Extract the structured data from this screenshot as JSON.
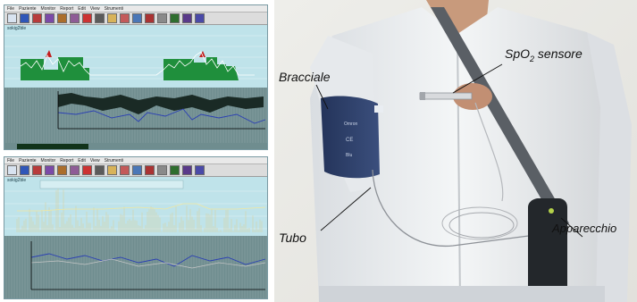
{
  "title_fragment": "p",
  "title_sub": "2",
  "software": {
    "menu_items": [
      "File",
      "Paziente",
      "Monitor",
      "Report",
      "Edit",
      "View",
      "Strumenti"
    ],
    "toolbar_colors": [
      "#d8e3f0",
      "#2f56b8",
      "#b83b3b",
      "#7b4aa8",
      "#ab6e2c",
      "#8e5c96",
      "#c33",
      "#5b5b5b",
      "#d8b35a",
      "#c35a5a",
      "#4b77b7",
      "#a33",
      "#8a8a8a",
      "#2f6e2f",
      "#5a3a8a",
      "#4a4aa8"
    ],
    "top_window": {
      "plot_label": "sokig2ble"
    },
    "bottom_window": {
      "plot_label": "sokig2ble"
    }
  },
  "photo": {
    "labels": {
      "spo2_main": "SpO",
      "spo2_sub": "2",
      "spo2_rest": " sensore",
      "bracciale": "Bracciale",
      "apparecchio": "Apparecchio",
      "tubo": "Tubo"
    },
    "cuff_text": [
      "Omron",
      "CE",
      "Blu"
    ]
  }
}
